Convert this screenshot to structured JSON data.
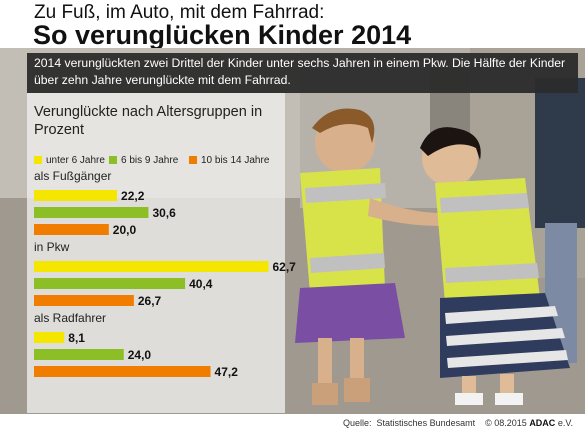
{
  "header": {
    "kicker": "Zu Fuß, im Auto, mit dem Fahrrad:",
    "headline": "So verunglücken Kinder 2014"
  },
  "intro": "2014 verunglückten zwei Drittel der Kinder unter sechs Jahren in einem Pkw. Die Hälfte der Kinder über zehn Jahre verunglückte mit dem Fahrrad.",
  "footer": {
    "source_label": "Quelle:",
    "source_name": "Statistisches Bundesamt",
    "copyright": "© 08.2015",
    "brand": "ADAC",
    "brand_suffix": " e.V."
  },
  "chart_data": {
    "type": "bar",
    "orientation": "horizontal",
    "title": "Verunglückte nach Altersgruppen in Prozent",
    "categories": [
      "als Fußgänger",
      "in Pkw",
      "als Radfahrer"
    ],
    "series": [
      {
        "name": "unter 6 Jahre",
        "values": [
          22.2,
          62.7,
          8.1
        ]
      },
      {
        "name": "6 bis 9 Jahre",
        "values": [
          30.6,
          40.4,
          24.0
        ]
      },
      {
        "name": "10 bis 14 Jahre",
        "values": [
          20.0,
          26.7,
          47.2
        ]
      }
    ],
    "value_labels": [
      [
        "22,2",
        "62,7",
        "8,1"
      ],
      [
        "30,6",
        "40,4",
        "24,0"
      ],
      [
        "20,0",
        "26,7",
        "47,2"
      ]
    ],
    "colors": [
      "#f5e600",
      "#8cbf26",
      "#f07d00"
    ],
    "xlim": [
      0,
      70
    ],
    "grid": false,
    "legend": "top-left"
  }
}
